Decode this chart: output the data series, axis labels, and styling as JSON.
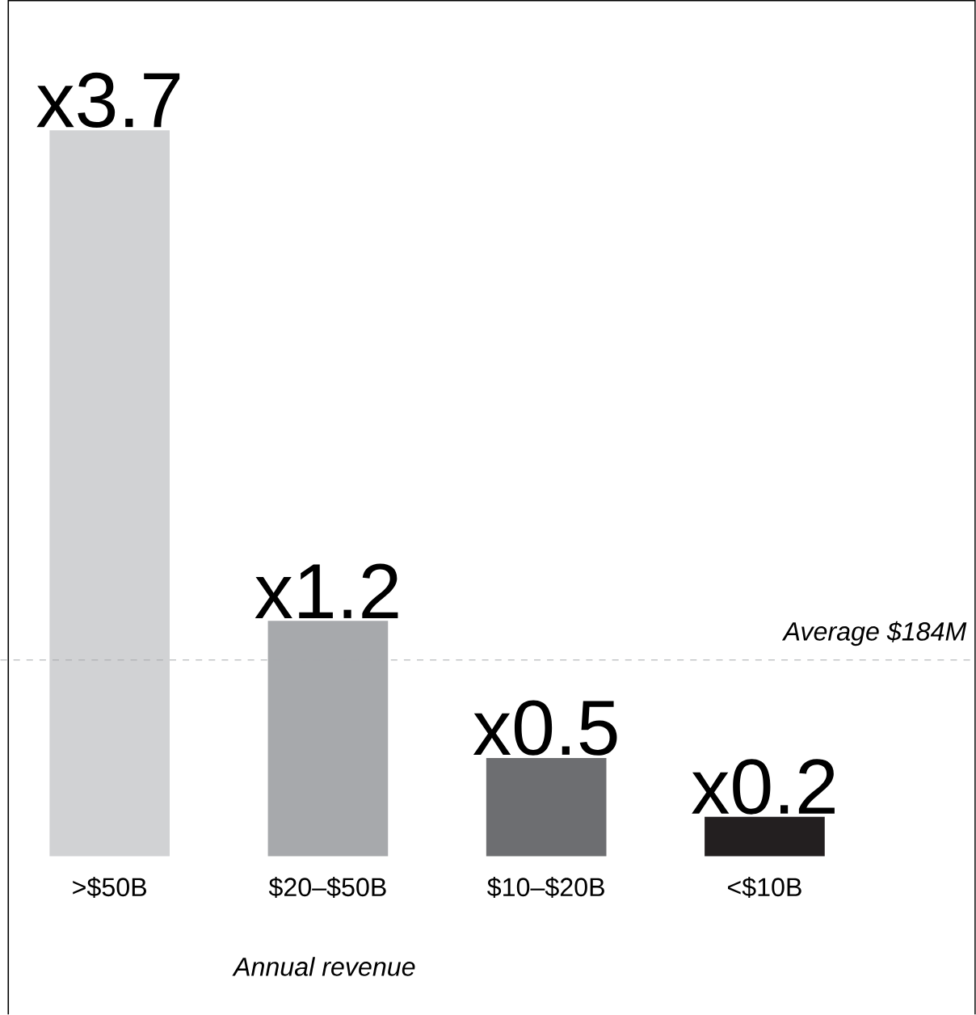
{
  "chart_data": {
    "type": "bar",
    "xlabel": "Annual revenue",
    "categories": [
      ">$50B",
      "$20–$50B",
      "$10–$20B",
      "<$10B"
    ],
    "values": [
      3.7,
      1.2,
      0.5,
      0.2
    ],
    "value_labels": [
      "x3.7",
      "x1.2",
      "x0.5",
      "x0.2"
    ],
    "colors": [
      "#d1d2d4",
      "#a7a9ac",
      "#6d6e71",
      "#231f20"
    ],
    "ref_lines": [
      {
        "axis": "y",
        "value": 1,
        "label": "Average $184M",
        "color": "#a7a9ac",
        "line_style": "dashed"
      }
    ]
  }
}
